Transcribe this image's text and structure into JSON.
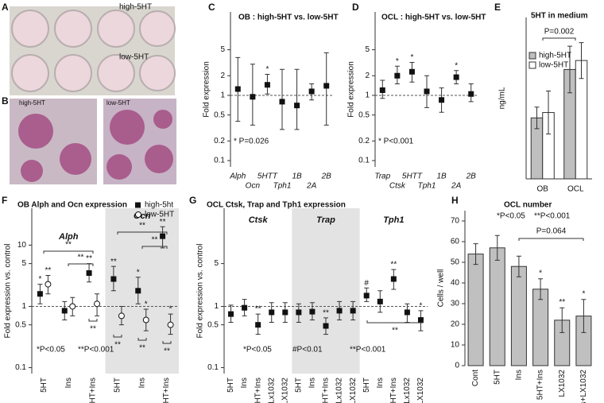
{
  "panel_labels": [
    "A",
    "B",
    "C",
    "D",
    "E",
    "F",
    "G",
    "H"
  ],
  "images": {
    "a_labels": [
      "high-5HT",
      "low-5HT"
    ],
    "b_labels": [
      "high-5HT",
      "low-5HT"
    ]
  },
  "chart_data": [
    {
      "type": "errorbar",
      "title": "OB : high-5HT vs. low-5HT",
      "ylabel": "Fold expression",
      "log_y": true,
      "ylim": [
        0.08,
        19
      ],
      "yticks": [
        0.1,
        0.2,
        0.5,
        1,
        2,
        5
      ],
      "refline": 1,
      "categories": [
        "Alph",
        "Ocn",
        "5HTT",
        "Tph1",
        "1B",
        "2A",
        "2B"
      ],
      "series": [
        {
          "color": "#111111",
          "marker": "square",
          "values": [
            1.25,
            0.95,
            1.45,
            0.8,
            0.7,
            1.15,
            1.4
          ],
          "lower": [
            0.4,
            0.35,
            1.05,
            0.3,
            0.3,
            0.85,
            0.35
          ],
          "upper": [
            3.8,
            3.0,
            2.1,
            2.5,
            2.5,
            1.5,
            4.5
          ],
          "sig": [
            null,
            null,
            "*",
            null,
            null,
            null,
            null
          ]
        }
      ],
      "annotations": [
        "* P=0.026"
      ]
    },
    {
      "type": "errorbar",
      "title": "OCL : high-5HT vs. low-5HT",
      "ylabel": "Fold expression",
      "log_y": true,
      "ylim": [
        0.08,
        19
      ],
      "yticks": [
        0.1,
        0.2,
        0.5,
        1,
        2,
        5
      ],
      "refline": 1,
      "categories": [
        "Trap",
        "Ctsk",
        "5HTT",
        "Tph1",
        "1B",
        "2A",
        "2B"
      ],
      "series": [
        {
          "color": "#111111",
          "marker": "square",
          "values": [
            1.2,
            2.0,
            2.3,
            1.15,
            0.85,
            1.9,
            1.05
          ],
          "lower": [
            0.9,
            1.5,
            1.6,
            0.65,
            0.55,
            1.5,
            0.8
          ],
          "upper": [
            1.7,
            2.8,
            3.2,
            2.0,
            1.3,
            2.4,
            1.5
          ],
          "sig": [
            null,
            "*",
            "*",
            null,
            null,
            "*",
            null
          ]
        }
      ],
      "annotations": [
        "* P<0.001"
      ]
    },
    {
      "type": "bar",
      "title": "5HT in medium",
      "ylabel": "ng/mL",
      "ylim": [
        0,
        9
      ],
      "categories": [
        "OB",
        "OCL"
      ],
      "series": [
        {
          "name": "high-5HT",
          "color": "#bfbfbf",
          "values": [
            3.4,
            6.1
          ],
          "errors": [
            0.6,
            1.3
          ]
        },
        {
          "name": "low-5HT",
          "color": "#ffffff",
          "values": [
            3.7,
            6.6
          ],
          "errors": [
            1.2,
            1.0
          ]
        }
      ],
      "brackets": [
        "P=0.002"
      ]
    },
    {
      "type": "errorbar",
      "title": "OB  Alph and Ocn expression",
      "ylabel": "Fold expression vs. control",
      "log_y": true,
      "ylim": [
        0.08,
        40
      ],
      "yticks": [
        0.1,
        0.5,
        1,
        5,
        10
      ],
      "refline": 1,
      "categories": [
        "5HT",
        "Ins",
        "5HT+Ins",
        "5HT",
        "Ins",
        "5HT+Ins"
      ],
      "groups": [
        "Alph",
        "Ocn"
      ],
      "series": [
        {
          "name": "high-5ht",
          "color": "#111111",
          "marker": "square",
          "values": [
            1.6,
            0.85,
            3.5,
            2.8,
            1.8,
            14
          ],
          "lower": [
            1.1,
            0.6,
            2.5,
            1.8,
            1.1,
            9
          ],
          "upper": [
            2.3,
            1.2,
            5,
            4.5,
            3,
            20
          ],
          "sig": [
            "*",
            null,
            "**",
            "**",
            "*",
            "**"
          ]
        },
        {
          "name": "low-5HT",
          "color": "#111111",
          "marker": "circle",
          "values": [
            2.3,
            1.0,
            1.1,
            0.7,
            0.6,
            0.5
          ],
          "lower": [
            1.6,
            0.7,
            0.7,
            0.5,
            0.4,
            0.35
          ],
          "upper": [
            3.2,
            1.4,
            1.6,
            1.0,
            0.9,
            0.75
          ],
          "sig": [
            "**",
            null,
            null,
            null,
            "*",
            "*"
          ]
        }
      ],
      "brackets": [
        "**",
        "**",
        "**",
        "**",
        "**",
        "**",
        "**",
        "**"
      ],
      "annotations": [
        "*P<0.05",
        "**P<0.001"
      ]
    },
    {
      "type": "errorbar",
      "title": "OCL  Ctsk, Trap and Tph1 expression",
      "ylabel": "Fold expression vs. control",
      "log_y": true,
      "ylim": [
        0.08,
        40
      ],
      "yticks": [
        0.1,
        0.5,
        1,
        5
      ],
      "refline": 1,
      "categories": [
        "5HT",
        "Ins",
        "5HT+Ins",
        "Lx1032",
        "Ins+LX1032",
        "5HT",
        "Ins",
        "5HT+Ins",
        "Lx1032",
        "Ins+LX1032",
        "5HT",
        "Ins",
        "5HT+Ins",
        "Lx1032",
        "Ins+LX1032"
      ],
      "groups": [
        "Ctsk",
        "Trap",
        "Tph1"
      ],
      "series": [
        {
          "color": "#111111",
          "marker": "square",
          "values": [
            0.75,
            0.95,
            0.5,
            0.8,
            0.8,
            0.8,
            0.82,
            0.48,
            0.85,
            0.85,
            1.5,
            1.2,
            2.8,
            0.8,
            0.6
          ],
          "lower": [
            0.55,
            0.7,
            0.35,
            0.55,
            0.55,
            0.55,
            0.6,
            0.35,
            0.6,
            0.6,
            1.2,
            0.8,
            1.9,
            0.55,
            0.4
          ],
          "upper": [
            1.05,
            1.3,
            0.75,
            1.15,
            1.15,
            1.1,
            1.15,
            0.65,
            1.2,
            1.2,
            2.0,
            1.8,
            4.0,
            1.1,
            0.85
          ],
          "sig": [
            null,
            null,
            "**",
            null,
            null,
            null,
            null,
            "**",
            null,
            null,
            "#",
            null,
            "**",
            null,
            "*"
          ]
        }
      ],
      "brackets": [
        "**"
      ],
      "annotations": [
        "*P<0.05",
        "#P<0.01",
        "**P<0.001"
      ]
    },
    {
      "type": "bar",
      "title": "OCL number",
      "ylabel": "Cells / well",
      "ylim": [
        0,
        75
      ],
      "yticks": [
        0,
        10,
        20,
        30,
        40,
        50,
        60,
        70
      ],
      "categories": [
        "Cont",
        "5HT",
        "Ins",
        "5HT+Ins",
        "LX1032",
        "Ins+LX1032"
      ],
      "series": [
        {
          "color": "#c0c0c0",
          "values": [
            54,
            57,
            48,
            37,
            22,
            24
          ],
          "errors": [
            5,
            6,
            5,
            5,
            6,
            8
          ],
          "sig": [
            null,
            null,
            null,
            "*",
            "**",
            "*"
          ]
        }
      ],
      "brackets": [
        "P=0.064"
      ],
      "annotations": [
        "*P<0.05",
        "**P<0.001"
      ]
    }
  ]
}
